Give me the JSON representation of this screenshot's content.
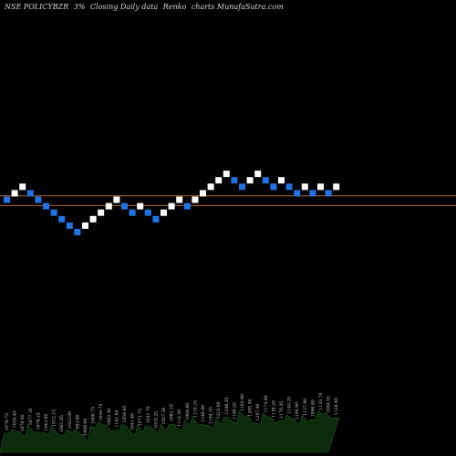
{
  "header": {
    "symbol": "NSE POLICYBZR",
    "box_size": "3%",
    "mode": "Closing Daily data",
    "chart_kind": "Renko",
    "site": "charts MunafaSutra.com"
  },
  "colors": {
    "background": "#000000",
    "up_brick": "#ffffff",
    "down_brick": "#1e74e6",
    "reference_line": "#b5651d",
    "volume_area": "#0c2a0c",
    "volume_edge": "#1f5a1f"
  },
  "chart_data": [
    {
      "type": "renko",
      "title": "NSE POLICYBZR 3% Closing Daily data Renko charts MunafaSutra.com",
      "box_size_percent": 3,
      "bricks": [
        {
          "dir": "down",
          "level": 0
        },
        {
          "dir": "up",
          "level": 1
        },
        {
          "dir": "up",
          "level": 2
        },
        {
          "dir": "down",
          "level": 1
        },
        {
          "dir": "down",
          "level": 0
        },
        {
          "dir": "down",
          "level": -1
        },
        {
          "dir": "down",
          "level": -2
        },
        {
          "dir": "down",
          "level": -3
        },
        {
          "dir": "down",
          "level": -4
        },
        {
          "dir": "down",
          "level": -5
        },
        {
          "dir": "up",
          "level": -4
        },
        {
          "dir": "up",
          "level": -3
        },
        {
          "dir": "up",
          "level": -2
        },
        {
          "dir": "up",
          "level": -1
        },
        {
          "dir": "up",
          "level": 0
        },
        {
          "dir": "down",
          "level": -1
        },
        {
          "dir": "down",
          "level": -2
        },
        {
          "dir": "up",
          "level": -1
        },
        {
          "dir": "down",
          "level": -2
        },
        {
          "dir": "down",
          "level": -3
        },
        {
          "dir": "up",
          "level": -2
        },
        {
          "dir": "up",
          "level": -1
        },
        {
          "dir": "up",
          "level": 0
        },
        {
          "dir": "down",
          "level": -1
        },
        {
          "dir": "up",
          "level": 0
        },
        {
          "dir": "up",
          "level": 1
        },
        {
          "dir": "up",
          "level": 2
        },
        {
          "dir": "up",
          "level": 3
        },
        {
          "dir": "up",
          "level": 4
        },
        {
          "dir": "down",
          "level": 3
        },
        {
          "dir": "down",
          "level": 2
        },
        {
          "dir": "up",
          "level": 3
        },
        {
          "dir": "up",
          "level": 4
        },
        {
          "dir": "down",
          "level": 3
        },
        {
          "dir": "down",
          "level": 2
        },
        {
          "dir": "up",
          "level": 3
        },
        {
          "dir": "down",
          "level": 2
        },
        {
          "dir": "down",
          "level": 1
        },
        {
          "dir": "up",
          "level": 2
        },
        {
          "dir": "down",
          "level": 1
        },
        {
          "dir": "up",
          "level": 2
        },
        {
          "dir": "down",
          "level": 1
        },
        {
          "dir": "up",
          "level": 2
        }
      ],
      "reference_lines_level": [
        0.6,
        -0.9
      ],
      "brick_labels": [
        "1076.75",
        "1039.40",
        "1070.40",
        "1077.10",
        "1078.25",
        "1043.00",
        "1012.15",
        "1061.85",
        "1023.00",
        "983.80",
        "1008.60",
        "1000.75",
        "1044.75",
        "1062.40",
        "1101.00",
        "1054.85",
        "1041.60",
        "1072.75",
        "1031.70",
        "1018.25",
        "1057.30",
        "1082.10",
        "1114.50",
        "1068.80",
        "1110.25",
        "1146.40",
        "1184.35",
        "1210.60",
        "1248.35",
        "1190.20",
        "1162.80",
        "1205.30",
        "1247.40",
        "1174.80",
        "1136.20",
        "1176.35",
        "1140.25",
        "1104.90",
        "1137.80",
        "1096.40",
        "1133.70",
        "1094.55",
        "1128.40"
      ],
      "volume_relative": [
        0.3,
        0.34,
        0.28,
        0.38,
        0.31,
        0.29,
        0.36,
        0.27,
        0.33,
        0.32,
        0.22,
        0.4,
        0.45,
        0.38,
        0.35,
        0.42,
        0.3,
        0.37,
        0.41,
        0.33,
        0.39,
        0.44,
        0.36,
        0.46,
        0.5,
        0.43,
        0.4,
        0.48,
        0.55,
        0.47,
        0.6,
        0.52,
        0.45,
        0.58,
        0.5,
        0.49,
        0.56,
        0.47,
        0.53,
        0.51,
        0.62,
        0.57,
        0.54
      ]
    }
  ]
}
